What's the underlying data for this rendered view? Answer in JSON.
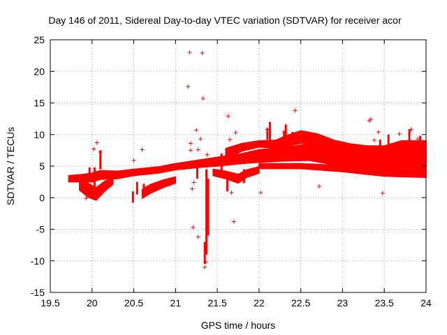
{
  "chart_data": {
    "type": "scatter",
    "title": "Day 146 of 2011, Sidereal Day-to-day VTEC variation (SDTVAR) for receiver acor",
    "xlabel": "GPS time / hours",
    "ylabel": "SDTVAR / TECUs",
    "xlim": [
      19.5,
      24
    ],
    "ylim": [
      -15,
      25
    ],
    "xticks": [
      "19.5",
      "20",
      "20.5",
      "21",
      "21.5",
      "22",
      "22.5",
      "23",
      "23.5",
      "24"
    ],
    "yticks": [
      "-15",
      "-10",
      "-5",
      "0",
      "5",
      "10",
      "15",
      "20",
      "25"
    ],
    "grid": true,
    "marker": "+",
    "color": "#ff0000",
    "bands": [
      {
        "name": "main-band",
        "points": [
          [
            19.72,
            3.0,
            1.0
          ],
          [
            19.9,
            3.1,
            1.2
          ],
          [
            20.0,
            3.2,
            1.4
          ],
          [
            20.1,
            3.6,
            1.4
          ],
          [
            20.3,
            3.6,
            1.2
          ],
          [
            20.5,
            4.0,
            1.0
          ],
          [
            20.8,
            4.4,
            1.0
          ],
          [
            21.0,
            4.9,
            1.0
          ],
          [
            21.3,
            5.4,
            1.2
          ],
          [
            21.5,
            5.7,
            1.4
          ],
          [
            21.8,
            6.2,
            1.6
          ],
          [
            22.0,
            6.6,
            2.0
          ],
          [
            22.3,
            6.9,
            2.2
          ],
          [
            22.6,
            7.2,
            2.6
          ],
          [
            22.9,
            6.6,
            2.8
          ],
          [
            23.2,
            6.3,
            3.0
          ],
          [
            23.5,
            6.2,
            3.0
          ],
          [
            23.8,
            6.0,
            3.0
          ],
          [
            24.0,
            5.9,
            3.2
          ]
        ]
      },
      {
        "name": "upper-arc",
        "points": [
          [
            21.6,
            7.0,
            1.6
          ],
          [
            21.8,
            8.0,
            1.2
          ],
          [
            22.0,
            8.5,
            1.0
          ],
          [
            22.2,
            8.5,
            1.2
          ],
          [
            22.3,
            8.9,
            1.6
          ],
          [
            22.5,
            9.6,
            2.0
          ],
          [
            22.7,
            9.3,
            1.6
          ],
          [
            22.9,
            8.4,
            1.4
          ],
          [
            23.1,
            7.8,
            1.4
          ],
          [
            23.3,
            7.4,
            1.6
          ],
          [
            23.5,
            7.0,
            2.4
          ],
          [
            23.7,
            7.5,
            3.0
          ],
          [
            24.0,
            7.4,
            3.2
          ]
        ]
      },
      {
        "name": "early-lower",
        "points": [
          [
            19.85,
            2.0,
            1.6
          ],
          [
            19.95,
            1.2,
            2.2
          ],
          [
            20.05,
            0.6,
            2.0
          ],
          [
            20.15,
            1.8,
            1.6
          ],
          [
            20.25,
            2.6,
            1.0
          ]
        ]
      },
      {
        "name": "dip-20-6",
        "points": [
          [
            20.6,
            0.6,
            1.4
          ],
          [
            20.7,
            1.4,
            1.4
          ],
          [
            20.85,
            2.2,
            1.2
          ],
          [
            21.0,
            2.8,
            1.0
          ]
        ]
      },
      {
        "name": "dip-21-8",
        "points": [
          [
            21.45,
            4.0,
            1.0
          ],
          [
            21.6,
            3.6,
            1.2
          ],
          [
            21.75,
            3.0,
            1.4
          ],
          [
            21.85,
            3.8,
            1.2
          ],
          [
            22.0,
            4.4,
            1.0
          ]
        ]
      },
      {
        "name": "late-lower",
        "points": [
          [
            22.0,
            5.0,
            0.8
          ],
          [
            22.5,
            5.0,
            0.8
          ],
          [
            23.0,
            4.6,
            1.0
          ],
          [
            23.5,
            4.0,
            1.2
          ],
          [
            24.0,
            3.8,
            1.2
          ]
        ]
      }
    ],
    "spikes": [
      {
        "x": 19.97,
        "y0": 3.5,
        "y1": 4.8
      },
      {
        "x": 20.03,
        "y0": 0.2,
        "y1": 4.8
      },
      {
        "x": 20.1,
        "y0": 4.5,
        "y1": 7.5
      },
      {
        "x": 20.49,
        "y0": -0.8,
        "y1": 1.0
      },
      {
        "x": 20.54,
        "y0": 0.5,
        "y1": 2.5
      },
      {
        "x": 20.62,
        "y0": 0.0,
        "y1": 2.2
      },
      {
        "x": 21.26,
        "y0": 3.0,
        "y1": 5.0
      },
      {
        "x": 21.35,
        "y0": -10.5,
        "y1": -7.0
      },
      {
        "x": 21.37,
        "y0": -9.0,
        "y1": 4.5
      },
      {
        "x": 21.39,
        "y0": -6.0,
        "y1": 3.0
      },
      {
        "x": 21.55,
        "y0": 4.0,
        "y1": 7.0
      },
      {
        "x": 21.62,
        "y0": 1.0,
        "y1": 3.5
      },
      {
        "x": 21.82,
        "y0": 2.3,
        "y1": 4.5
      },
      {
        "x": 22.1,
        "y0": 9.2,
        "y1": 11.0
      },
      {
        "x": 22.13,
        "y0": 8.5,
        "y1": 12.0
      },
      {
        "x": 22.3,
        "y0": 7.5,
        "y1": 10.5
      },
      {
        "x": 22.32,
        "y0": 9.0,
        "y1": 11.6
      },
      {
        "x": 22.4,
        "y0": 8.5,
        "y1": 10.4
      },
      {
        "x": 23.45,
        "y0": 7.0,
        "y1": 9.2
      },
      {
        "x": 23.55,
        "y0": 7.5,
        "y1": 10.0
      },
      {
        "x": 23.8,
        "y0": 7.5,
        "y1": 10.8
      },
      {
        "x": 23.93,
        "y0": 6.5,
        "y1": 9.8
      }
    ],
    "outliers": [
      [
        19.93,
        -0.1
      ],
      [
        20.02,
        7.7
      ],
      [
        20.06,
        8.7
      ],
      [
        20.1,
        7.2
      ],
      [
        20.5,
        5.9
      ],
      [
        20.6,
        7.6
      ],
      [
        21.15,
        17.6
      ],
      [
        21.17,
        23.0
      ],
      [
        21.18,
        8.6
      ],
      [
        21.18,
        7.5
      ],
      [
        21.2,
        1.4
      ],
      [
        21.22,
        2.4
      ],
      [
        21.25,
        10.7
      ],
      [
        21.27,
        7.6
      ],
      [
        21.3,
        9.3
      ],
      [
        21.32,
        22.9
      ],
      [
        21.33,
        15.7
      ],
      [
        21.21,
        -4.7
      ],
      [
        21.27,
        -6.2
      ],
      [
        21.35,
        -11.0
      ],
      [
        21.36,
        -10.2
      ],
      [
        21.38,
        6.8
      ],
      [
        21.63,
        12.9
      ],
      [
        21.65,
        9.2
      ],
      [
        21.67,
        0.8
      ],
      [
        21.7,
        -3.8
      ],
      [
        21.72,
        10.3
      ],
      [
        22.02,
        0.8
      ],
      [
        22.1,
        10.8
      ],
      [
        22.3,
        10.4
      ],
      [
        22.43,
        13.8
      ],
      [
        22.72,
        1.8
      ],
      [
        23.05,
        6.5
      ],
      [
        23.32,
        12.2
      ],
      [
        23.34,
        12.4
      ],
      [
        23.38,
        9.1
      ],
      [
        23.43,
        10.4
      ],
      [
        23.48,
        0.7
      ],
      [
        23.68,
        10.1
      ],
      [
        23.82,
        10.8
      ],
      [
        23.9,
        9.3
      ]
    ]
  }
}
